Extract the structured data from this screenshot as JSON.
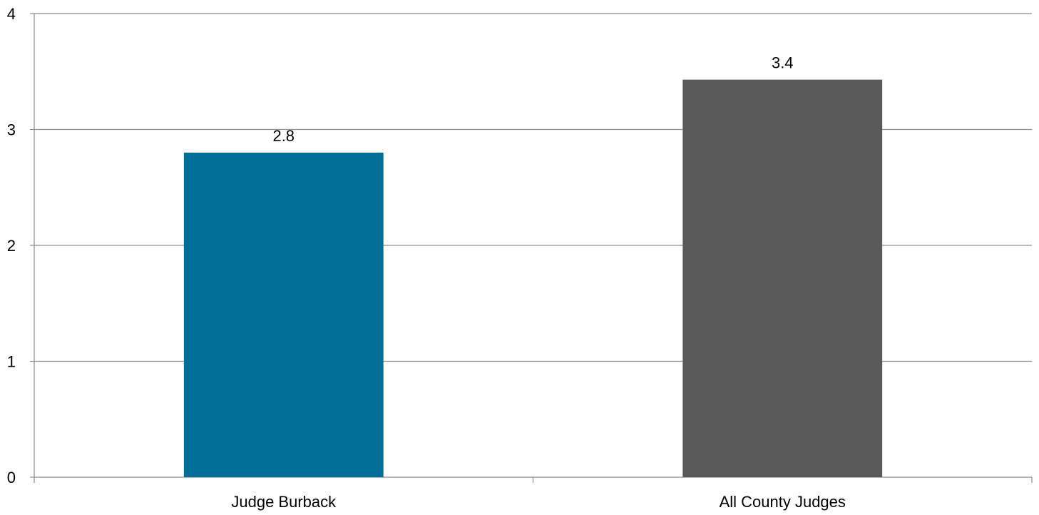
{
  "chart_data": {
    "type": "bar",
    "categories": [
      "Judge Burback",
      "All County Judges"
    ],
    "values": [
      2.8,
      3.43
    ],
    "data_labels": [
      "2.8",
      "3.4"
    ],
    "bar_colors": [
      "#006e96",
      "#595959"
    ],
    "ylim": [
      0,
      4
    ],
    "yticks": [
      0,
      1,
      2,
      3,
      4
    ],
    "ytick_labels": [
      "0",
      "1",
      "2",
      "3",
      "4"
    ],
    "grid": true,
    "grid_color": "#8c8c8c",
    "axis_color": "#8c8c8c",
    "legend": "none"
  }
}
